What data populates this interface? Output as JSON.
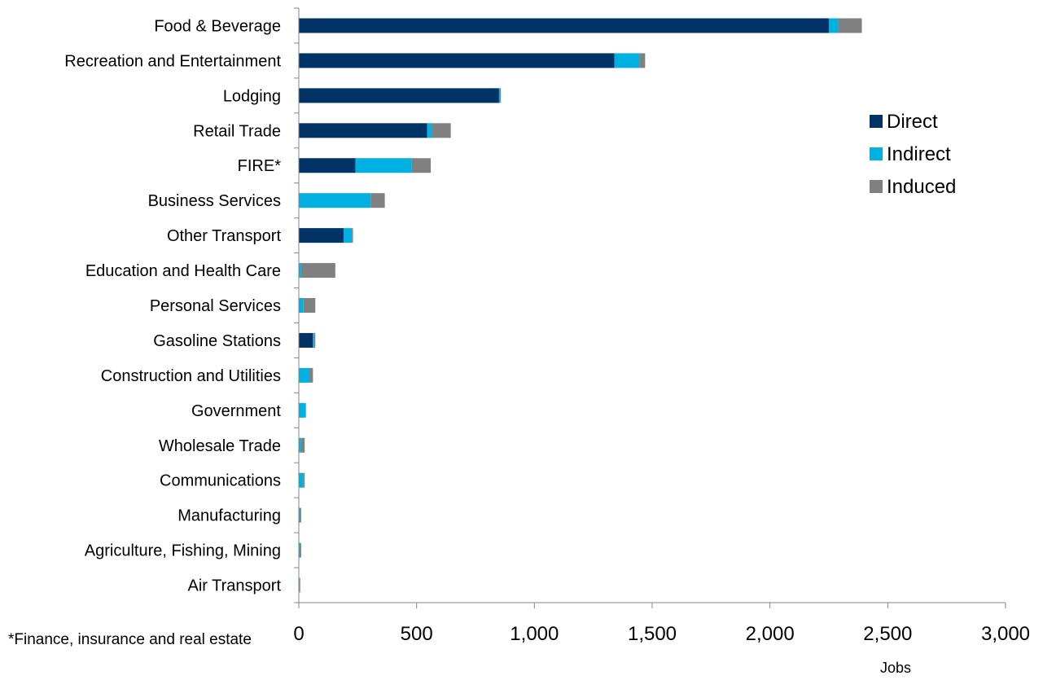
{
  "chart_data": {
    "type": "bar",
    "orientation": "horizontal",
    "stacked": true,
    "categories": [
      "Food & Beverage",
      "Recreation and Entertainment",
      "Lodging",
      "Retail Trade",
      "FIRE*",
      "Business Services",
      "Other Transport",
      "Education and Health Care",
      "Personal Services",
      "Gasoline Stations",
      "Construction and Utilities",
      "Government",
      "Wholesale Trade",
      "Communications",
      "Manufacturing",
      "Agriculture, Fishing, Mining",
      "Air Transport"
    ],
    "series": [
      {
        "name": "Direct",
        "color": "#003366",
        "values": [
          2250,
          1340,
          850,
          545,
          240,
          0,
          190,
          0,
          0,
          60,
          0,
          0,
          0,
          0,
          0,
          0,
          0
        ]
      },
      {
        "name": "Indirect",
        "color": "#00b0e0",
        "values": [
          40,
          105,
          5,
          20,
          240,
          305,
          35,
          10,
          20,
          5,
          45,
          30,
          10,
          20,
          5,
          5,
          3
        ]
      },
      {
        "name": "Induced",
        "color": "#808080",
        "values": [
          100,
          25,
          3,
          80,
          80,
          60,
          5,
          145,
          50,
          5,
          15,
          0,
          15,
          5,
          5,
          5,
          3
        ]
      }
    ],
    "xlabel": "Jobs",
    "xlim": [
      0,
      3000
    ],
    "xticks": [
      0,
      500,
      1000,
      1500,
      2000,
      2500,
      3000
    ],
    "xtick_labels": [
      "0",
      "500",
      "1,000",
      "1,500",
      "2,000",
      "2,500",
      "3,000"
    ],
    "grid": false,
    "legend_position": "right"
  },
  "footnote": "*Finance, insurance and real estate"
}
